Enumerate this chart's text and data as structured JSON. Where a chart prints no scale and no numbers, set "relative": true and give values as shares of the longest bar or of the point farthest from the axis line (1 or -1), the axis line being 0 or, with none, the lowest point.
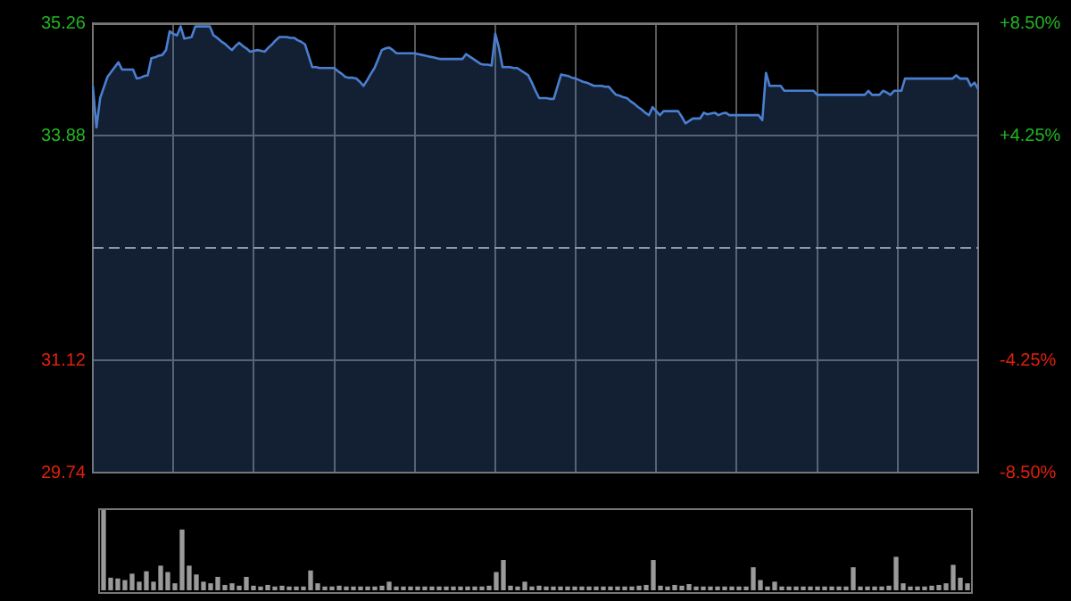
{
  "chart_data": [
    {
      "type": "area",
      "color": "#4a7fd0",
      "ylim": [
        29.74,
        35.26
      ],
      "y2lim": [
        -8.5,
        8.5
      ],
      "grid": true,
      "tick_labels": "y",
      "marker": "none",
      "yticks": [
        29.74,
        31.12,
        33.88,
        35.26
      ],
      "y2ticks": [
        {
          "value": -8.5,
          "label": "-8.50%"
        },
        {
          "value": -4.25,
          "label": "-4.25%"
        },
        {
          "value": 4.25,
          "label": "+4.25%"
        },
        {
          "value": 8.5,
          "label": "+8.50%"
        }
      ],
      "ref_lines": [
        {
          "axis": "y",
          "value": 32.5,
          "line_style": "dashed"
        }
      ],
      "categories": [
        null,
        null,
        null,
        null,
        null,
        null,
        null,
        null,
        null,
        null,
        null,
        null,
        null,
        null,
        null,
        null,
        null,
        null,
        null,
        null,
        null,
        null,
        null,
        null,
        null,
        null,
        null,
        null,
        null,
        null,
        null,
        null,
        null,
        null,
        null,
        null,
        null,
        null,
        null,
        null,
        null,
        null,
        null,
        null,
        null,
        null,
        null,
        null,
        null,
        null,
        null,
        null,
        null,
        null,
        null,
        null,
        null,
        null,
        null,
        null,
        null,
        null,
        null,
        null,
        null,
        null,
        null,
        null,
        null,
        null,
        null,
        null,
        null,
        null,
        null,
        null,
        null,
        null,
        null,
        null,
        null,
        null,
        null,
        null,
        null,
        null,
        null,
        null,
        null,
        null,
        null,
        null,
        null,
        null,
        null,
        null,
        null,
        null,
        null,
        null,
        null,
        null,
        null,
        null,
        null,
        null,
        null,
        null,
        null,
        null,
        null,
        null,
        null,
        null,
        null,
        null,
        null,
        null,
        null,
        null,
        null,
        null,
        null,
        null,
        null,
        null,
        null,
        null,
        null,
        null,
        null,
        null,
        null,
        null,
        null,
        null,
        null,
        null,
        null,
        null,
        null,
        null,
        null,
        null,
        null,
        null,
        null,
        null,
        null,
        null,
        null,
        null,
        null,
        null,
        null,
        null,
        null,
        null,
        null,
        null,
        null,
        null,
        null,
        null,
        null,
        null,
        null,
        null,
        null,
        null,
        null,
        null,
        null,
        null,
        null,
        null,
        null,
        null,
        null,
        null,
        null,
        null,
        null,
        null,
        null,
        null,
        null,
        null,
        null,
        null,
        null,
        null,
        null,
        null,
        null,
        null,
        null,
        null,
        null,
        null,
        null,
        null,
        null,
        null,
        null,
        null,
        null,
        null,
        null,
        null,
        null,
        null,
        null,
        null,
        null,
        null,
        null,
        null,
        null,
        null,
        null,
        null,
        null,
        null,
        null,
        null,
        null,
        null,
        null,
        null,
        null,
        null,
        null,
        null,
        null,
        null,
        null,
        null,
        null,
        null,
        null,
        null,
        null
      ],
      "values": [
        34.49,
        33.98,
        34.34,
        34.47,
        34.6,
        34.66,
        34.72,
        34.78,
        34.69,
        34.69,
        34.69,
        34.69,
        34.58,
        34.59,
        34.61,
        34.62,
        34.83,
        34.84,
        34.86,
        34.87,
        34.93,
        35.16,
        35.13,
        35.11,
        35.22,
        35.07,
        35.08,
        35.09,
        35.22,
        35.22,
        35.22,
        35.22,
        35.22,
        35.11,
        35.08,
        35.04,
        35.01,
        34.97,
        34.93,
        34.98,
        35.02,
        34.98,
        34.95,
        34.91,
        34.92,
        34.93,
        34.92,
        34.91,
        34.96,
        35.0,
        35.05,
        35.09,
        35.09,
        35.09,
        35.08,
        35.08,
        35.05,
        35.03,
        35.0,
        34.86,
        34.72,
        34.72,
        34.71,
        34.71,
        34.71,
        34.71,
        34.71,
        34.67,
        34.64,
        34.6,
        34.59,
        34.59,
        34.58,
        34.54,
        34.49,
        34.56,
        34.64,
        34.71,
        34.82,
        34.93,
        34.95,
        34.96,
        34.93,
        34.89,
        34.89,
        34.89,
        34.89,
        34.89,
        34.89,
        34.88,
        34.87,
        34.86,
        34.85,
        34.84,
        34.83,
        34.82,
        34.82,
        34.82,
        34.82,
        34.82,
        34.82,
        34.82,
        34.88,
        34.85,
        34.82,
        34.79,
        34.76,
        34.75,
        34.75,
        34.74,
        35.13,
        34.96,
        34.72,
        34.72,
        34.72,
        34.71,
        34.71,
        34.68,
        34.65,
        34.62,
        34.53,
        34.43,
        34.34,
        34.34,
        34.34,
        34.33,
        34.33,
        34.48,
        34.63,
        34.62,
        34.61,
        34.59,
        34.58,
        34.56,
        34.54,
        34.53,
        34.51,
        34.49,
        34.49,
        34.49,
        34.48,
        34.48,
        34.43,
        34.38,
        34.37,
        34.35,
        34.34,
        34.3,
        34.27,
        34.23,
        34.2,
        34.16,
        34.13,
        34.23,
        34.18,
        34.13,
        34.18,
        34.18,
        34.18,
        34.18,
        34.18,
        34.11,
        34.03,
        34.06,
        34.09,
        34.09,
        34.09,
        34.16,
        34.14,
        34.15,
        34.16,
        34.13,
        34.15,
        34.16,
        34.13,
        34.13,
        34.13,
        34.13,
        34.13,
        34.13,
        34.13,
        34.13,
        34.13,
        34.07,
        34.65,
        34.49,
        34.49,
        34.49,
        34.49,
        34.43,
        34.43,
        34.43,
        34.43,
        34.43,
        34.43,
        34.43,
        34.43,
        34.43,
        34.38,
        34.38,
        34.38,
        34.38,
        34.38,
        34.38,
        34.38,
        34.38,
        34.38,
        34.38,
        34.38,
        34.38,
        34.38,
        34.38,
        34.43,
        34.38,
        34.38,
        34.38,
        34.43,
        34.41,
        34.38,
        34.43,
        34.43,
        34.43,
        34.58,
        34.58,
        34.58,
        34.58,
        34.58,
        34.58,
        34.58,
        34.58,
        34.58,
        34.58,
        34.58,
        34.58,
        34.58,
        34.58,
        34.62,
        34.58,
        34.58,
        34.58,
        34.49,
        34.53,
        34.45
      ]
    },
    {
      "type": "bar",
      "relative": true,
      "color": "#9a9a9a",
      "tick_labels": false,
      "grid": false,
      "categories": [
        null,
        null,
        null,
        null,
        null,
        null,
        null,
        null,
        null,
        null,
        null,
        null,
        null,
        null,
        null,
        null,
        null,
        null,
        null,
        null,
        null,
        null,
        null,
        null,
        null,
        null,
        null,
        null,
        null,
        null,
        null,
        null,
        null,
        null,
        null,
        null,
        null,
        null,
        null,
        null,
        null,
        null,
        null,
        null,
        null,
        null,
        null,
        null,
        null,
        null,
        null,
        null,
        null,
        null,
        null,
        null,
        null,
        null,
        null,
        null,
        null,
        null,
        null,
        null,
        null,
        null,
        null,
        null,
        null,
        null,
        null,
        null,
        null,
        null,
        null,
        null,
        null,
        null,
        null,
        null,
        null,
        null,
        null,
        null,
        null,
        null,
        null,
        null,
        null,
        null,
        null,
        null,
        null,
        null,
        null,
        null,
        null,
        null,
        null,
        null,
        null,
        null,
        null,
        null,
        null,
        null,
        null,
        null,
        null,
        null,
        null,
        null,
        null,
        null,
        null,
        null,
        null,
        null,
        null,
        null,
        null,
        null
      ],
      "values": [
        1.0,
        0.15,
        0.14,
        0.12,
        0.2,
        0.1,
        0.23,
        0.1,
        0.3,
        0.22,
        0.08,
        0.75,
        0.3,
        0.19,
        0.1,
        0.08,
        0.16,
        0.06,
        0.08,
        0.05,
        0.16,
        0.05,
        0.04,
        0.06,
        0.04,
        0.05,
        0.04,
        0.04,
        0.04,
        0.24,
        0.08,
        0.04,
        0.04,
        0.05,
        0.04,
        0.04,
        0.04,
        0.04,
        0.04,
        0.05,
        0.1,
        0.04,
        0.04,
        0.04,
        0.04,
        0.04,
        0.04,
        0.04,
        0.04,
        0.04,
        0.04,
        0.04,
        0.04,
        0.04,
        0.05,
        0.22,
        0.37,
        0.05,
        0.04,
        0.1,
        0.04,
        0.05,
        0.04,
        0.04,
        0.04,
        0.04,
        0.04,
        0.04,
        0.04,
        0.04,
        0.04,
        0.04,
        0.04,
        0.04,
        0.04,
        0.05,
        0.06,
        0.37,
        0.05,
        0.04,
        0.06,
        0.05,
        0.07,
        0.04,
        0.04,
        0.04,
        0.04,
        0.04,
        0.04,
        0.04,
        0.04,
        0.28,
        0.12,
        0.04,
        0.1,
        0.04,
        0.04,
        0.04,
        0.04,
        0.04,
        0.04,
        0.04,
        0.04,
        0.04,
        0.04,
        0.28,
        0.04,
        0.04,
        0.04,
        0.04,
        0.05,
        0.41,
        0.08,
        0.04,
        0.04,
        0.04,
        0.05,
        0.06,
        0.08,
        0.31,
        0.15,
        0.08
      ]
    }
  ]
}
